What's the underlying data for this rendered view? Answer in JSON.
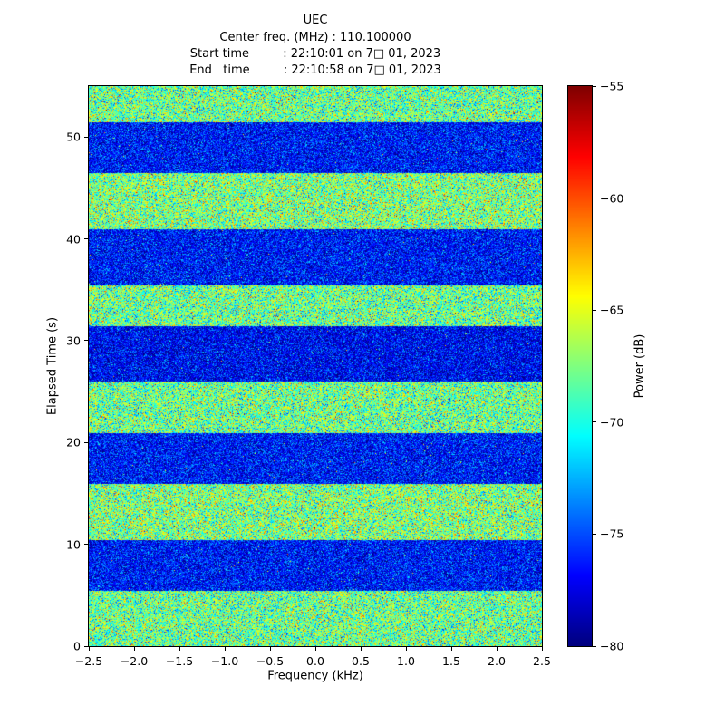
{
  "title": "UEC",
  "header": {
    "center_freq_line": "Center freq. (MHz) : 110.100000",
    "start_time_line": "Start time         : 22:10:01 on 7□ 01, 2023",
    "end_time_line": "End   time         : 22:10:58 on 7□ 01, 2023"
  },
  "chart_data": {
    "type": "heatmap",
    "title": "UEC",
    "subtitle_lines": [
      "Center freq. (MHz) : 110.100000",
      "Start time : 22:10:01 on 7□ 01, 2023",
      "End time : 22:10:58 on 7□ 01, 2023"
    ],
    "xlabel": "Frequency (kHz)",
    "ylabel": "Elapsed Time (s)",
    "colorbar_label": "Power (dB)",
    "colormap": "jet",
    "grid": false,
    "x_range": [
      -2.5,
      2.5
    ],
    "y_range": [
      0,
      55
    ],
    "color_range_db": [
      -80,
      -55
    ],
    "x_ticks": [
      -2.5,
      -2.0,
      -1.5,
      -1.0,
      -0.5,
      0.0,
      0.5,
      1.0,
      1.5,
      2.0,
      2.5
    ],
    "x_tick_labels": [
      "−2.5",
      "−2.0",
      "−1.5",
      "−1.0",
      "−0.5",
      "0.0",
      "0.5",
      "1.0",
      "1.5",
      "2.0",
      "2.5"
    ],
    "y_ticks": [
      0,
      10,
      20,
      30,
      40,
      50
    ],
    "y_tick_labels": [
      "0",
      "10",
      "20",
      "30",
      "40",
      "50"
    ],
    "colorbar_ticks": [
      -55,
      -60,
      -65,
      -70,
      -75,
      -80
    ],
    "colorbar_tick_labels": [
      "−55",
      "−60",
      "−65",
      "−70",
      "−75",
      "−80"
    ],
    "bands": [
      {
        "t_start": 0.0,
        "t_end": 5.5,
        "state": "high",
        "mean_power_db": -68.0,
        "std_db": 3.2
      },
      {
        "t_start": 5.5,
        "t_end": 10.5,
        "state": "low",
        "mean_power_db": -76.5,
        "std_db": 2.2
      },
      {
        "t_start": 10.5,
        "t_end": 16.0,
        "state": "high",
        "mean_power_db": -67.5,
        "std_db": 3.2
      },
      {
        "t_start": 16.0,
        "t_end": 21.0,
        "state": "low",
        "mean_power_db": -76.5,
        "std_db": 2.2
      },
      {
        "t_start": 21.0,
        "t_end": 26.0,
        "state": "high",
        "mean_power_db": -68.0,
        "std_db": 3.2
      },
      {
        "t_start": 26.0,
        "t_end": 31.5,
        "state": "low",
        "mean_power_db": -77.0,
        "std_db": 2.2
      },
      {
        "t_start": 31.5,
        "t_end": 35.5,
        "state": "high",
        "mean_power_db": -68.0,
        "std_db": 3.2
      },
      {
        "t_start": 35.5,
        "t_end": 41.0,
        "state": "low",
        "mean_power_db": -76.5,
        "std_db": 2.2
      },
      {
        "t_start": 41.0,
        "t_end": 46.5,
        "state": "high",
        "mean_power_db": -67.5,
        "std_db": 3.2
      },
      {
        "t_start": 46.5,
        "t_end": 51.5,
        "state": "low",
        "mean_power_db": -76.5,
        "std_db": 2.2
      },
      {
        "t_start": 51.5,
        "t_end": 55.0,
        "state": "high",
        "mean_power_db": -68.0,
        "std_db": 3.2
      }
    ],
    "description": "Spectrogram waterfall of broadband noise; horizontal bands alternate between higher power (~−67 dB, green/yellow) and lower power (~−77 dB, blue) roughly every 5 seconds over 0–55 s across −2.5 to 2.5 kHz."
  }
}
